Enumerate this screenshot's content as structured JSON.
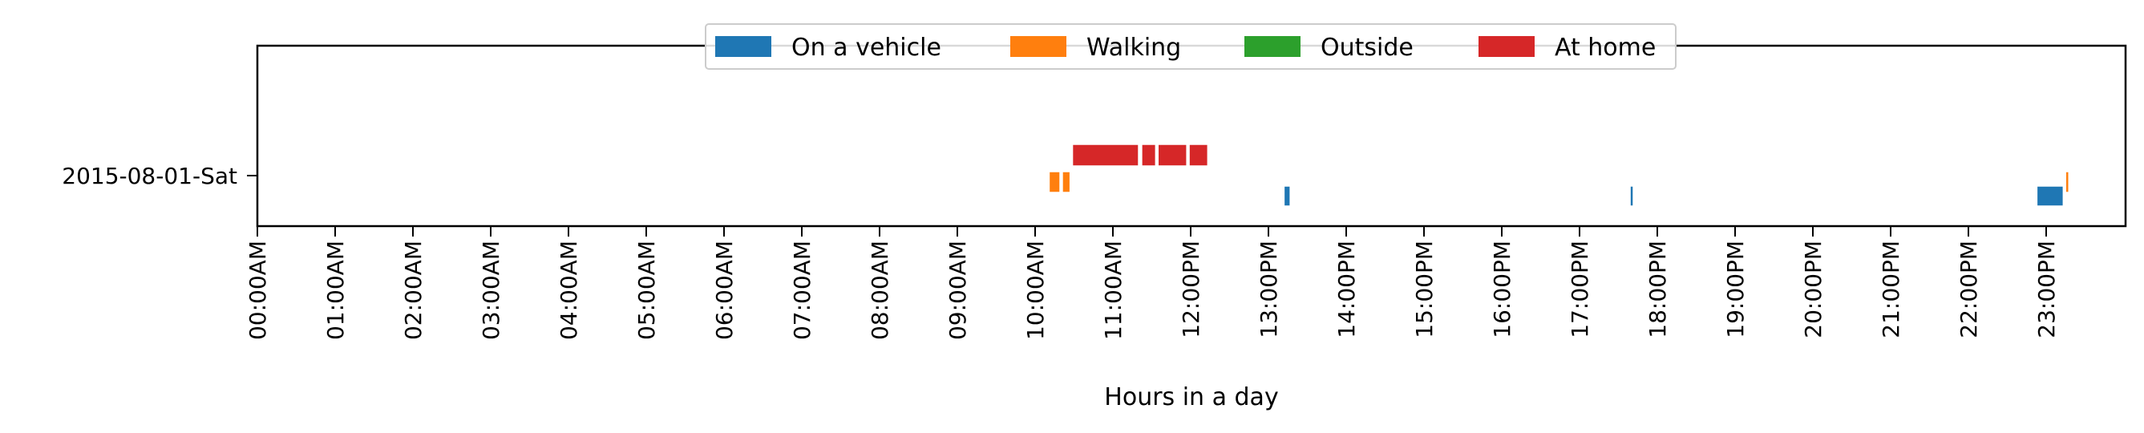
{
  "chart_data": {
    "type": "timeline",
    "xlabel": "Hours in a day",
    "ylabel": "",
    "xlim": [
      0,
      24
    ],
    "x_tick_labels": [
      "00:00AM",
      "01:00AM",
      "02:00AM",
      "03:00AM",
      "04:00AM",
      "05:00AM",
      "06:00AM",
      "07:00AM",
      "08:00AM",
      "09:00AM",
      "10:00AM",
      "11:00AM",
      "12:00PM",
      "13:00PM",
      "14:00PM",
      "15:00PM",
      "16:00PM",
      "17:00PM",
      "18:00PM",
      "19:00PM",
      "20:00PM",
      "21:00PM",
      "22:00PM",
      "23:00PM"
    ],
    "categories": [
      "2015-08-01-Sat"
    ],
    "legend_position": "top-center",
    "series": [
      {
        "name": "On a vehicle",
        "color": "#1f77b4",
        "segments": [
          [
            13.2,
            13.28
          ],
          [
            17.65,
            17.69
          ],
          [
            22.88,
            23.22
          ]
        ]
      },
      {
        "name": "Walking",
        "color": "#ff7f0e",
        "segments": [
          [
            10.18,
            10.32
          ],
          [
            10.35,
            10.45
          ],
          [
            23.25,
            23.29
          ]
        ]
      },
      {
        "name": "Outside",
        "color": "#2ca02c",
        "segments": []
      },
      {
        "name": "At home",
        "color": "#d62728",
        "segments": [
          [
            10.48,
            11.33
          ],
          [
            11.37,
            11.55
          ],
          [
            11.58,
            11.95
          ],
          [
            11.98,
            12.22
          ]
        ]
      }
    ]
  }
}
